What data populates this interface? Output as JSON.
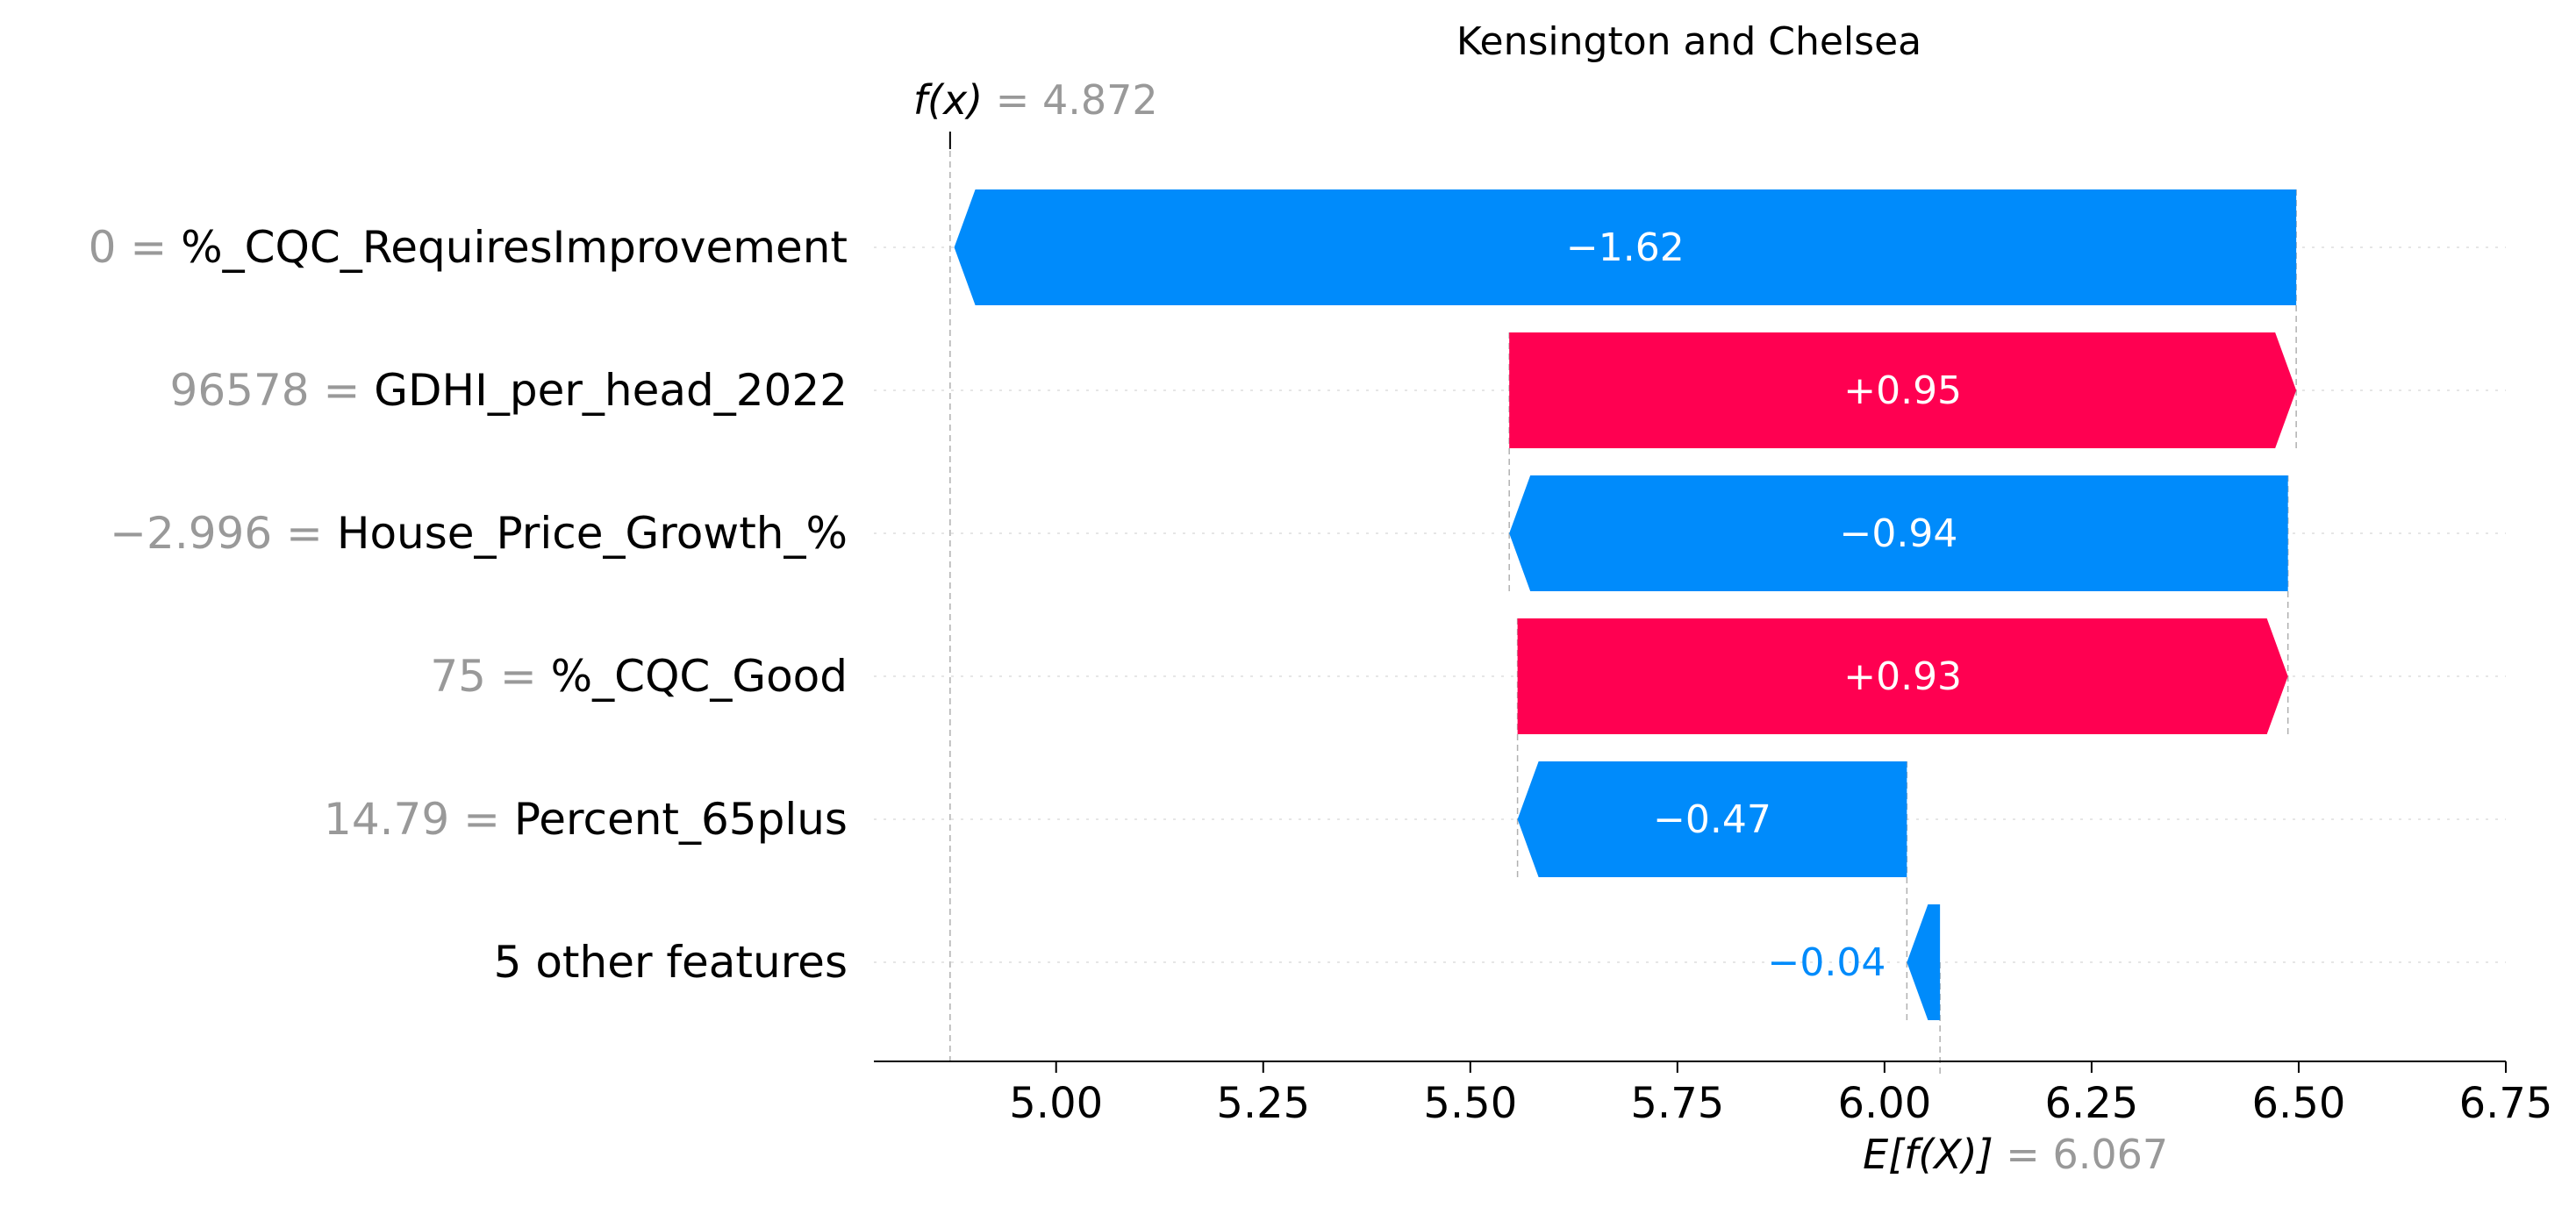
{
  "chart_data": {
    "type": "waterfall",
    "title": "Kensington and Chelsea",
    "xlim": [
      4.78,
      6.75
    ],
    "x_ticks": [
      "5.00",
      "5.25",
      "5.50",
      "5.75",
      "6.00",
      "6.25",
      "6.50",
      "6.75"
    ],
    "base_value": 6.067,
    "base_label": {
      "name": "E[f(X)]",
      "value": "6.067"
    },
    "output_value": 4.872,
    "output_label": {
      "name": "f(x)",
      "value": "4.872"
    },
    "features": [
      {
        "value": "0",
        "name": "%_CQC_RequiresImprovement",
        "contribution": -1.62,
        "label": "−1.62"
      },
      {
        "value": "96578",
        "name": "GDHI_per_head_2022",
        "contribution": 0.95,
        "label": "+0.95"
      },
      {
        "value": "−2.996",
        "name": "House_Price_Growth_%",
        "contribution": -0.94,
        "label": "−0.94"
      },
      {
        "value": "75",
        "name": "%_CQC_Good",
        "contribution": 0.93,
        "label": "+0.93"
      },
      {
        "value": "14.79",
        "name": "Percent_65plus",
        "contribution": -0.47,
        "label": "−0.47"
      },
      {
        "value": "",
        "name": "5 other features",
        "contribution": -0.04,
        "label": "−0.04"
      }
    ],
    "colors": {
      "positive": "#ff0051",
      "negative": "#008bfb",
      "muted": "#999999",
      "text": "#000000"
    }
  }
}
